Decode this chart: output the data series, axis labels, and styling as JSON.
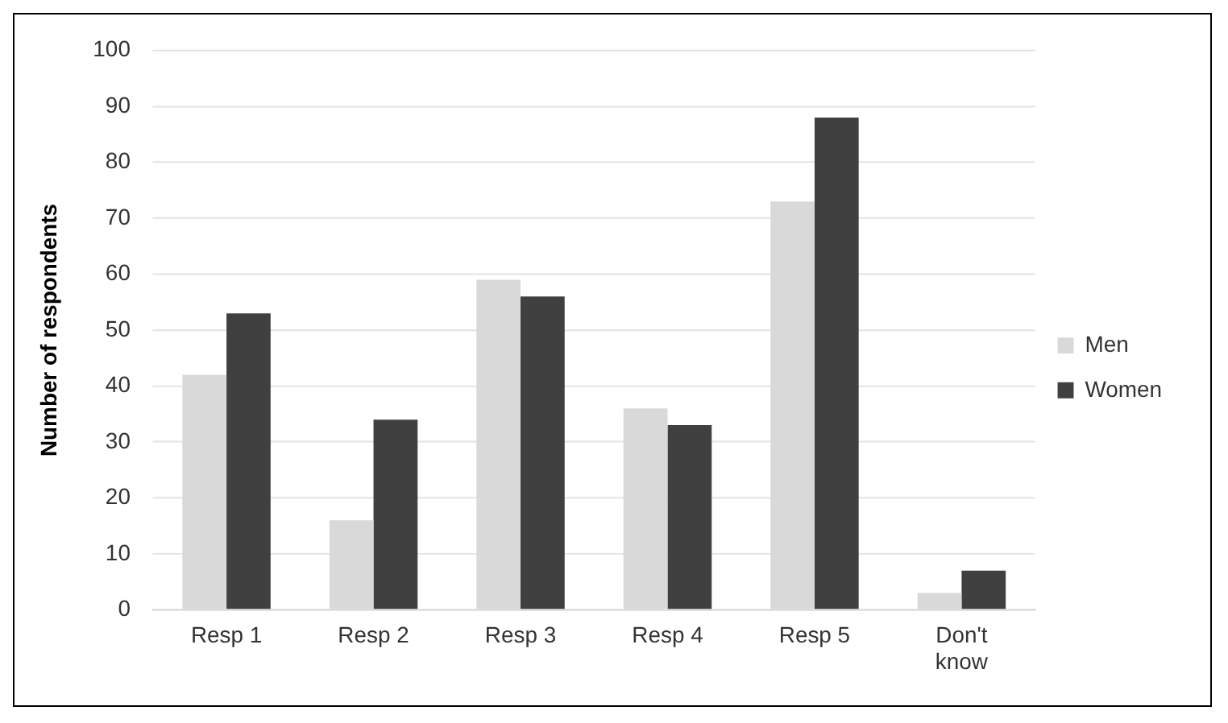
{
  "chart_data": {
    "type": "bar",
    "ylabel": "Number of respondents",
    "categories": [
      "Resp 1",
      "Resp 2",
      "Resp 3",
      "Resp 4",
      "Resp 5",
      "Don't know"
    ],
    "series": [
      {
        "name": "Men",
        "color": "#d9d9d9",
        "values": [
          42,
          16,
          59,
          36,
          73,
          3
        ]
      },
      {
        "name": "Women",
        "color": "#404040",
        "values": [
          53,
          34,
          56,
          33,
          88,
          7
        ]
      }
    ],
    "ylim": [
      0,
      100
    ],
    "yticks": [
      0,
      10,
      20,
      30,
      40,
      50,
      60,
      70,
      80,
      90,
      100
    ],
    "grid": "y",
    "legend": "right"
  }
}
